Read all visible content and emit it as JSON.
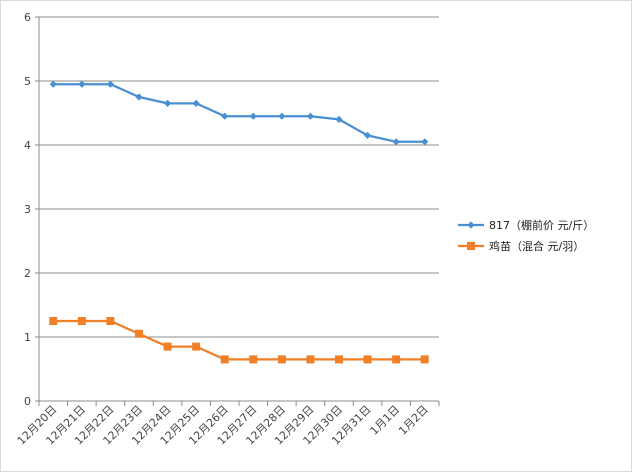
{
  "chart_data": {
    "type": "line",
    "title": "",
    "xlabel": "",
    "ylabel": "",
    "categories": [
      "12月20日",
      "12月21日",
      "12月22日",
      "12月23日",
      "12月24日",
      "12月25日",
      "12月26日",
      "12月27日",
      "12月28日",
      "12月29日",
      "12月30日",
      "12月31日",
      "1月1日",
      "1月2日"
    ],
    "ylim": [
      0,
      6
    ],
    "yticks": [
      "0",
      "1",
      "2",
      "3",
      "4",
      "5",
      "6"
    ],
    "grid": "horizontal",
    "legend_position": "right",
    "series": [
      {
        "name": "817（棚前价 元/斤）",
        "color": "#4a90d0",
        "marker": "diamond",
        "values": [
          4.95,
          4.95,
          4.95,
          4.75,
          4.65,
          4.65,
          4.45,
          4.45,
          4.45,
          4.45,
          4.4,
          4.15,
          4.05,
          4.05
        ]
      },
      {
        "name": "鸡苗（混合 元/羽）",
        "color": "#f07f27",
        "marker": "square",
        "values": [
          1.25,
          1.25,
          1.25,
          1.05,
          0.85,
          0.85,
          0.65,
          0.65,
          0.65,
          0.65,
          0.65,
          0.65,
          0.65,
          0.65
        ]
      }
    ]
  }
}
